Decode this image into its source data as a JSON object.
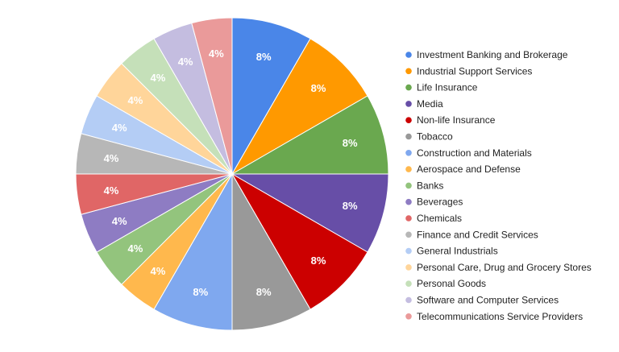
{
  "chart_data": {
    "type": "pie",
    "title": "",
    "legend_position": "right",
    "slices": [
      {
        "label": "Investment Banking and Brokerage",
        "value": 8,
        "display": "8%",
        "color": "#4a86e8"
      },
      {
        "label": "Industrial Support Services",
        "value": 8,
        "display": "8%",
        "color": "#ff9900"
      },
      {
        "label": "Life Insurance",
        "value": 8,
        "display": "8%",
        "color": "#6aa84f"
      },
      {
        "label": "Media",
        "value": 8,
        "display": "8%",
        "color": "#674ea7"
      },
      {
        "label": "Non-life Insurance",
        "value": 8,
        "display": "8%",
        "color": "#cc0000"
      },
      {
        "label": "Tobacco",
        "value": 8,
        "display": "8%",
        "color": "#999999"
      },
      {
        "label": "Construction and Materials",
        "value": 8,
        "display": "8%",
        "color": "#7fa8ef"
      },
      {
        "label": "Aerospace and Defense",
        "value": 4,
        "display": "4%",
        "color": "#ffb84d"
      },
      {
        "label": "Banks",
        "value": 4,
        "display": "4%",
        "color": "#93c47d"
      },
      {
        "label": "Beverages",
        "value": 4,
        "display": "4%",
        "color": "#8e7cc3"
      },
      {
        "label": "Chemicals",
        "value": 4,
        "display": "4%",
        "color": "#e06666"
      },
      {
        "label": "Finance and Credit Services",
        "value": 4,
        "display": "4%",
        "color": "#b7b7b7"
      },
      {
        "label": "General Industrials",
        "value": 4,
        "display": "4%",
        "color": "#b4cdf5"
      },
      {
        "label": "Personal Care, Drug and Grocery Stores",
        "value": 4,
        "display": "4%",
        "color": "#ffd59a"
      },
      {
        "label": "Personal Goods",
        "value": 4,
        "display": "4%",
        "color": "#c5e0b9"
      },
      {
        "label": "Software and Computer Services",
        "value": 4,
        "display": "4%",
        "color": "#c4bde0"
      },
      {
        "label": "Telecommunications Service Providers",
        "value": 4,
        "display": "4%",
        "color": "#ea9a9a"
      }
    ]
  }
}
